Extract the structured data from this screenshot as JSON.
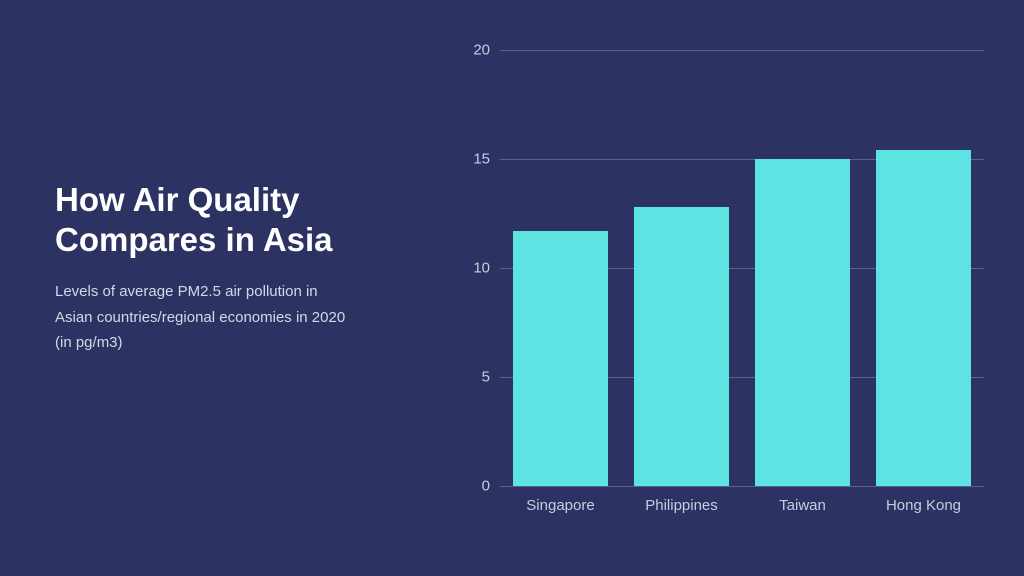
{
  "background_color": "#2c3261",
  "text": {
    "title": "How Air Quality Compares in Asia",
    "subtitle": "Levels of average PM2.5 air pollution in Asian countries/regional economies in 2020 (in pg/m3)",
    "title_color": "#ffffff",
    "title_fontsize": 33,
    "subtitle_color": "#d6d8e6",
    "subtitle_fontsize": 15
  },
  "chart": {
    "type": "bar",
    "categories": [
      "Singapore",
      "Philippines",
      "Taiwan",
      "Hong Kong"
    ],
    "values": [
      11.7,
      12.8,
      15.0,
      15.4
    ],
    "bar_color": "#5ee3e3",
    "ylim": [
      0,
      20
    ],
    "yticks": [
      0,
      5,
      10,
      15,
      20
    ],
    "grid_color": "#5d628a",
    "tick_color": "#c9cce0",
    "tick_fontsize": 15,
    "xtick_fontsize": 15,
    "bar_width": 0.78
  }
}
